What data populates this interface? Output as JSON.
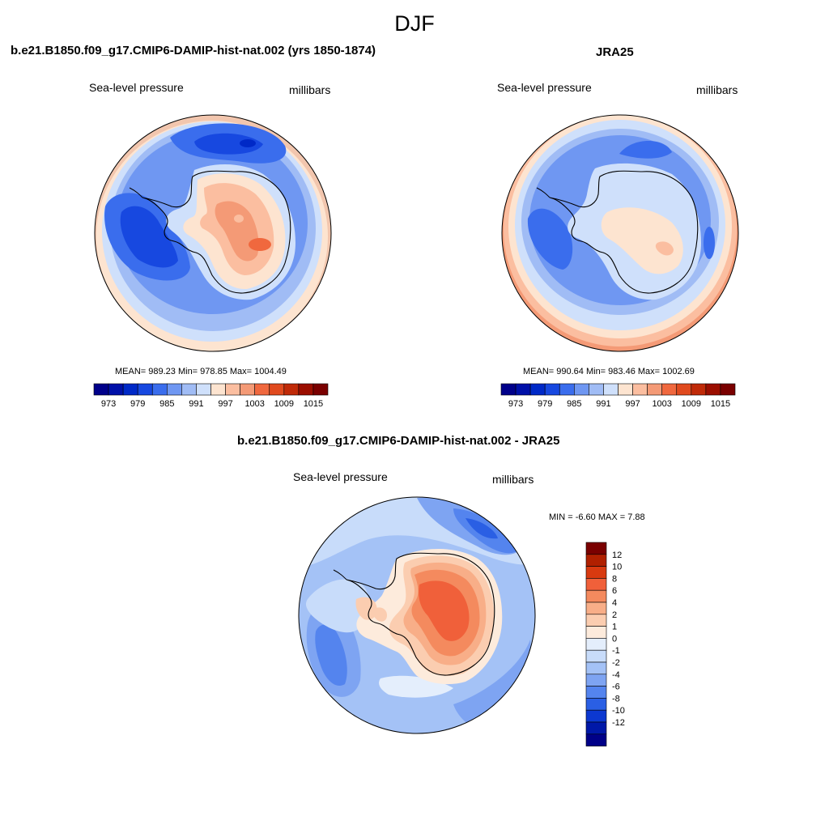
{
  "page_title": "DJF",
  "panels": [
    {
      "title": "b.e21.B1850.f09_g17.CMIP6-DAMIP-hist-nat.002 (yrs 1850-1874)",
      "left_label": "Sea-level pressure",
      "right_label": "millibars",
      "stats": "MEAN= 989.23  Min= 978.85  Max= 1004.49"
    },
    {
      "title": "JRA25",
      "left_label": "Sea-level pressure",
      "right_label": "millibars",
      "stats": "MEAN= 990.64  Min= 983.46  Max= 1002.69"
    },
    {
      "title": "b.e21.B1850.f09_g17.CMIP6-DAMIP-hist-nat.002 - JRA25",
      "left_label": "Sea-level pressure",
      "right_label": "millibars",
      "stats": "MIN =  -6.60 MAX =   7.88"
    }
  ],
  "chart_data": [
    {
      "type": "heatmap",
      "projection": "south polar stereographic",
      "title": "b.e21.B1850.f09_g17.CMIP6-DAMIP-hist-nat.002 (yrs 1850-1874)",
      "variable": "Sea-level pressure",
      "units": "millibars",
      "mean": 989.23,
      "min": 978.85,
      "max": 1004.49,
      "colorbar_orientation": "horizontal",
      "colorbar_tick_labels": [
        "973",
        "979",
        "985",
        "991",
        "997",
        "1003",
        "1009",
        "1015"
      ],
      "colorbar_colors": [
        "#00008a",
        "#0010a8",
        "#0029c7",
        "#1748e0",
        "#3a6ded",
        "#6f97f2",
        "#a0bcf5",
        "#cfe0fb",
        "#fde4d0",
        "#fbbea0",
        "#f49a76",
        "#f0683e",
        "#e04a1e",
        "#c02a08",
        "#9b0e00",
        "#7a0000"
      ]
    },
    {
      "type": "heatmap",
      "projection": "south polar stereographic",
      "title": "JRA25",
      "variable": "Sea-level pressure",
      "units": "millibars",
      "mean": 990.64,
      "min": 983.46,
      "max": 1002.69,
      "colorbar_orientation": "horizontal",
      "colorbar_tick_labels": [
        "973",
        "979",
        "985",
        "991",
        "997",
        "1003",
        "1009",
        "1015"
      ],
      "colorbar_colors": [
        "#00008a",
        "#0010a8",
        "#0029c7",
        "#1748e0",
        "#3a6ded",
        "#6f97f2",
        "#a0bcf5",
        "#cfe0fb",
        "#fde4d0",
        "#fbbea0",
        "#f49a76",
        "#f0683e",
        "#e04a1e",
        "#c02a08",
        "#9b0e00",
        "#7a0000"
      ]
    },
    {
      "type": "heatmap",
      "projection": "south polar stereographic",
      "title": "b.e21.B1850.f09_g17.CMIP6-DAMIP-hist-nat.002 - JRA25",
      "variable": "Sea-level pressure",
      "units": "millibars",
      "min": -6.6,
      "max": 7.88,
      "colorbar_orientation": "vertical",
      "colorbar_tick_labels": [
        "12",
        "10",
        "8",
        "6",
        "4",
        "2",
        "1",
        "0",
        "-1",
        "-2",
        "-4",
        "-6",
        "-8",
        "-10",
        "-12"
      ],
      "colorbar_colors": [
        "#7a0000",
        "#b02000",
        "#d83a10",
        "#f0603a",
        "#f48a5e",
        "#f8ae88",
        "#fbcdb0",
        "#fdebdc",
        "#e4eefc",
        "#c8dcfa",
        "#a4c2f6",
        "#7ea4f2",
        "#5484ee",
        "#2a5fe4",
        "#0c38d0",
        "#0018a8",
        "#000088"
      ]
    }
  ]
}
